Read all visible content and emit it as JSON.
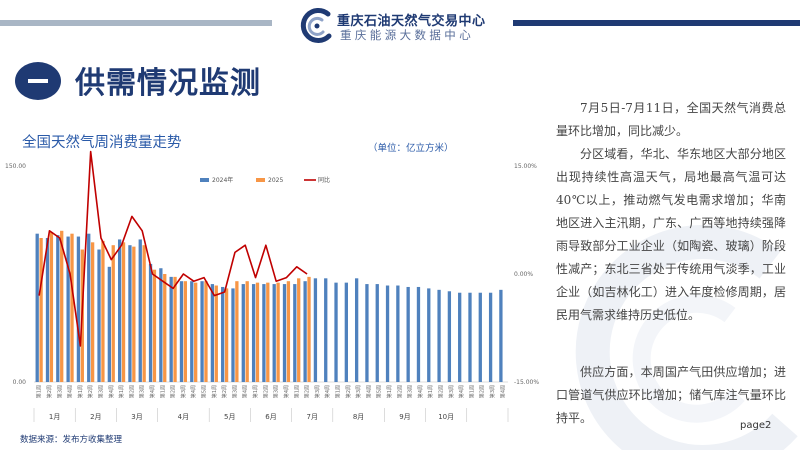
{
  "header": {
    "brand_name": "重庆石油天然气交易中心",
    "brand_sub": "重庆能源大数据中心"
  },
  "section": {
    "title": "供需情况监测"
  },
  "chart_title": "全国天然气周消费量走势",
  "unit_note": "（单位：亿立方米）",
  "source_note": "数据来源：发布方收集整理",
  "page_number": "page2",
  "colors": {
    "navy": "#1f3a73",
    "bar_2024": "#4f81bd",
    "bar_2025": "#f79646",
    "yoy_line": "#c00000"
  },
  "text": {
    "p1": "7月5日-7月11日，全国天然气消费总量环比增加，同比减少。",
    "p2": "分区域看，华北、华东地区大部分地区出现持续性高温天气，局地最高气温可达40℃以上，推动燃气发电需求增加；华南地区进入主汛期，广东、广西等地持续强降雨导致部分工业企业（如陶瓷、玻璃）阶段性减产；东北三省处于传统用气淡季，工业企业（如吉林化工）进入年度检修周期，居民用气需求维持历史低位。",
    "p3": "供应方面，本周国产气田供应增加；进口管道气供应环比增加；储气库注气量环比持平。"
  },
  "chart_data": {
    "type": "bar",
    "title": "全国天然气周消费量走势",
    "y_left_ticks": [
      "150.00",
      "0.00"
    ],
    "y_left_range": [
      0,
      150
    ],
    "y_right_ticks": [
      "15.00%",
      "0.00%",
      "-15.00%"
    ],
    "y_right_range": [
      -15,
      15
    ],
    "legend": [
      "2024年",
      "2025",
      "同比"
    ],
    "legend_position": "top",
    "grid": false,
    "week_labels": [
      "第1周",
      "第2周",
      "第3周",
      "第4周",
      "第1周",
      "第2周",
      "第3周",
      "第4周",
      "第1周",
      "第2周",
      "第3周",
      "第4周",
      "第1周",
      "第2周",
      "第3周",
      "第4周",
      "第5周",
      "第1周",
      "第2周",
      "第3周",
      "第4周",
      "第1周",
      "第2周",
      "第3周",
      "第4周",
      "第1周",
      "第2周",
      "第3周",
      "第4周",
      "第1周",
      "第2周",
      "第3周",
      "第4周",
      "第5周",
      "第1周",
      "第2周",
      "第3周",
      "第4周",
      "第1周",
      "第2周",
      "第3周",
      "第4周",
      "第1周",
      "第2周",
      "第3周",
      "第4周"
    ],
    "month_groups": [
      {
        "label": "1月",
        "weeks": 4
      },
      {
        "label": "2月",
        "weeks": 4
      },
      {
        "label": "3月",
        "weeks": 4
      },
      {
        "label": "4月",
        "weeks": 5
      },
      {
        "label": "5月",
        "weeks": 4
      },
      {
        "label": "6月",
        "weeks": 4
      },
      {
        "label": "7月",
        "weeks": 4
      },
      {
        "label": "8月",
        "weeks": 5
      },
      {
        "label": "9月",
        "weeks": 4
      },
      {
        "label": "10月",
        "weeks": 4
      },
      {
        "label": "",
        "weeks": 4
      }
    ],
    "series": [
      {
        "name": "2024年",
        "type": "bar",
        "values": [
          103,
          100,
          102,
          101,
          101,
          103,
          92,
          80,
          99,
          95,
          99,
          82,
          79,
          73,
          70,
          70,
          70,
          68,
          66,
          65,
          68,
          68,
          68,
          68,
          68,
          68,
          70,
          72,
          72,
          69,
          69,
          72,
          68,
          68,
          67,
          67,
          66,
          66,
          65,
          64,
          63,
          62,
          62,
          62,
          62,
          64
        ]
      },
      {
        "name": "2025",
        "type": "bar",
        "values": [
          100,
          104,
          105,
          103,
          92,
          97,
          98,
          95,
          97,
          94,
          95,
          78,
          75,
          73,
          70,
          69,
          70,
          67,
          65,
          70,
          70,
          69,
          69,
          69,
          70,
          72,
          73,
          null,
          null,
          null,
          null,
          null,
          null,
          null,
          null,
          null,
          null,
          null,
          null,
          null,
          null,
          null,
          null,
          null,
          null,
          null
        ]
      },
      {
        "name": "同比",
        "type": "line",
        "axis": "right",
        "values": [
          -3,
          6,
          5,
          0,
          -10,
          17,
          5,
          2,
          4,
          8,
          6,
          0,
          -1,
          -2,
          0,
          -1,
          -0.5,
          -3,
          -2.5,
          3,
          4,
          -0.5,
          4,
          -1,
          -0.5,
          1,
          0,
          null,
          null,
          null,
          null,
          null,
          null,
          null,
          null,
          null,
          null,
          null,
          null,
          null,
          null,
          null,
          null,
          null,
          null,
          null
        ]
      }
    ]
  }
}
